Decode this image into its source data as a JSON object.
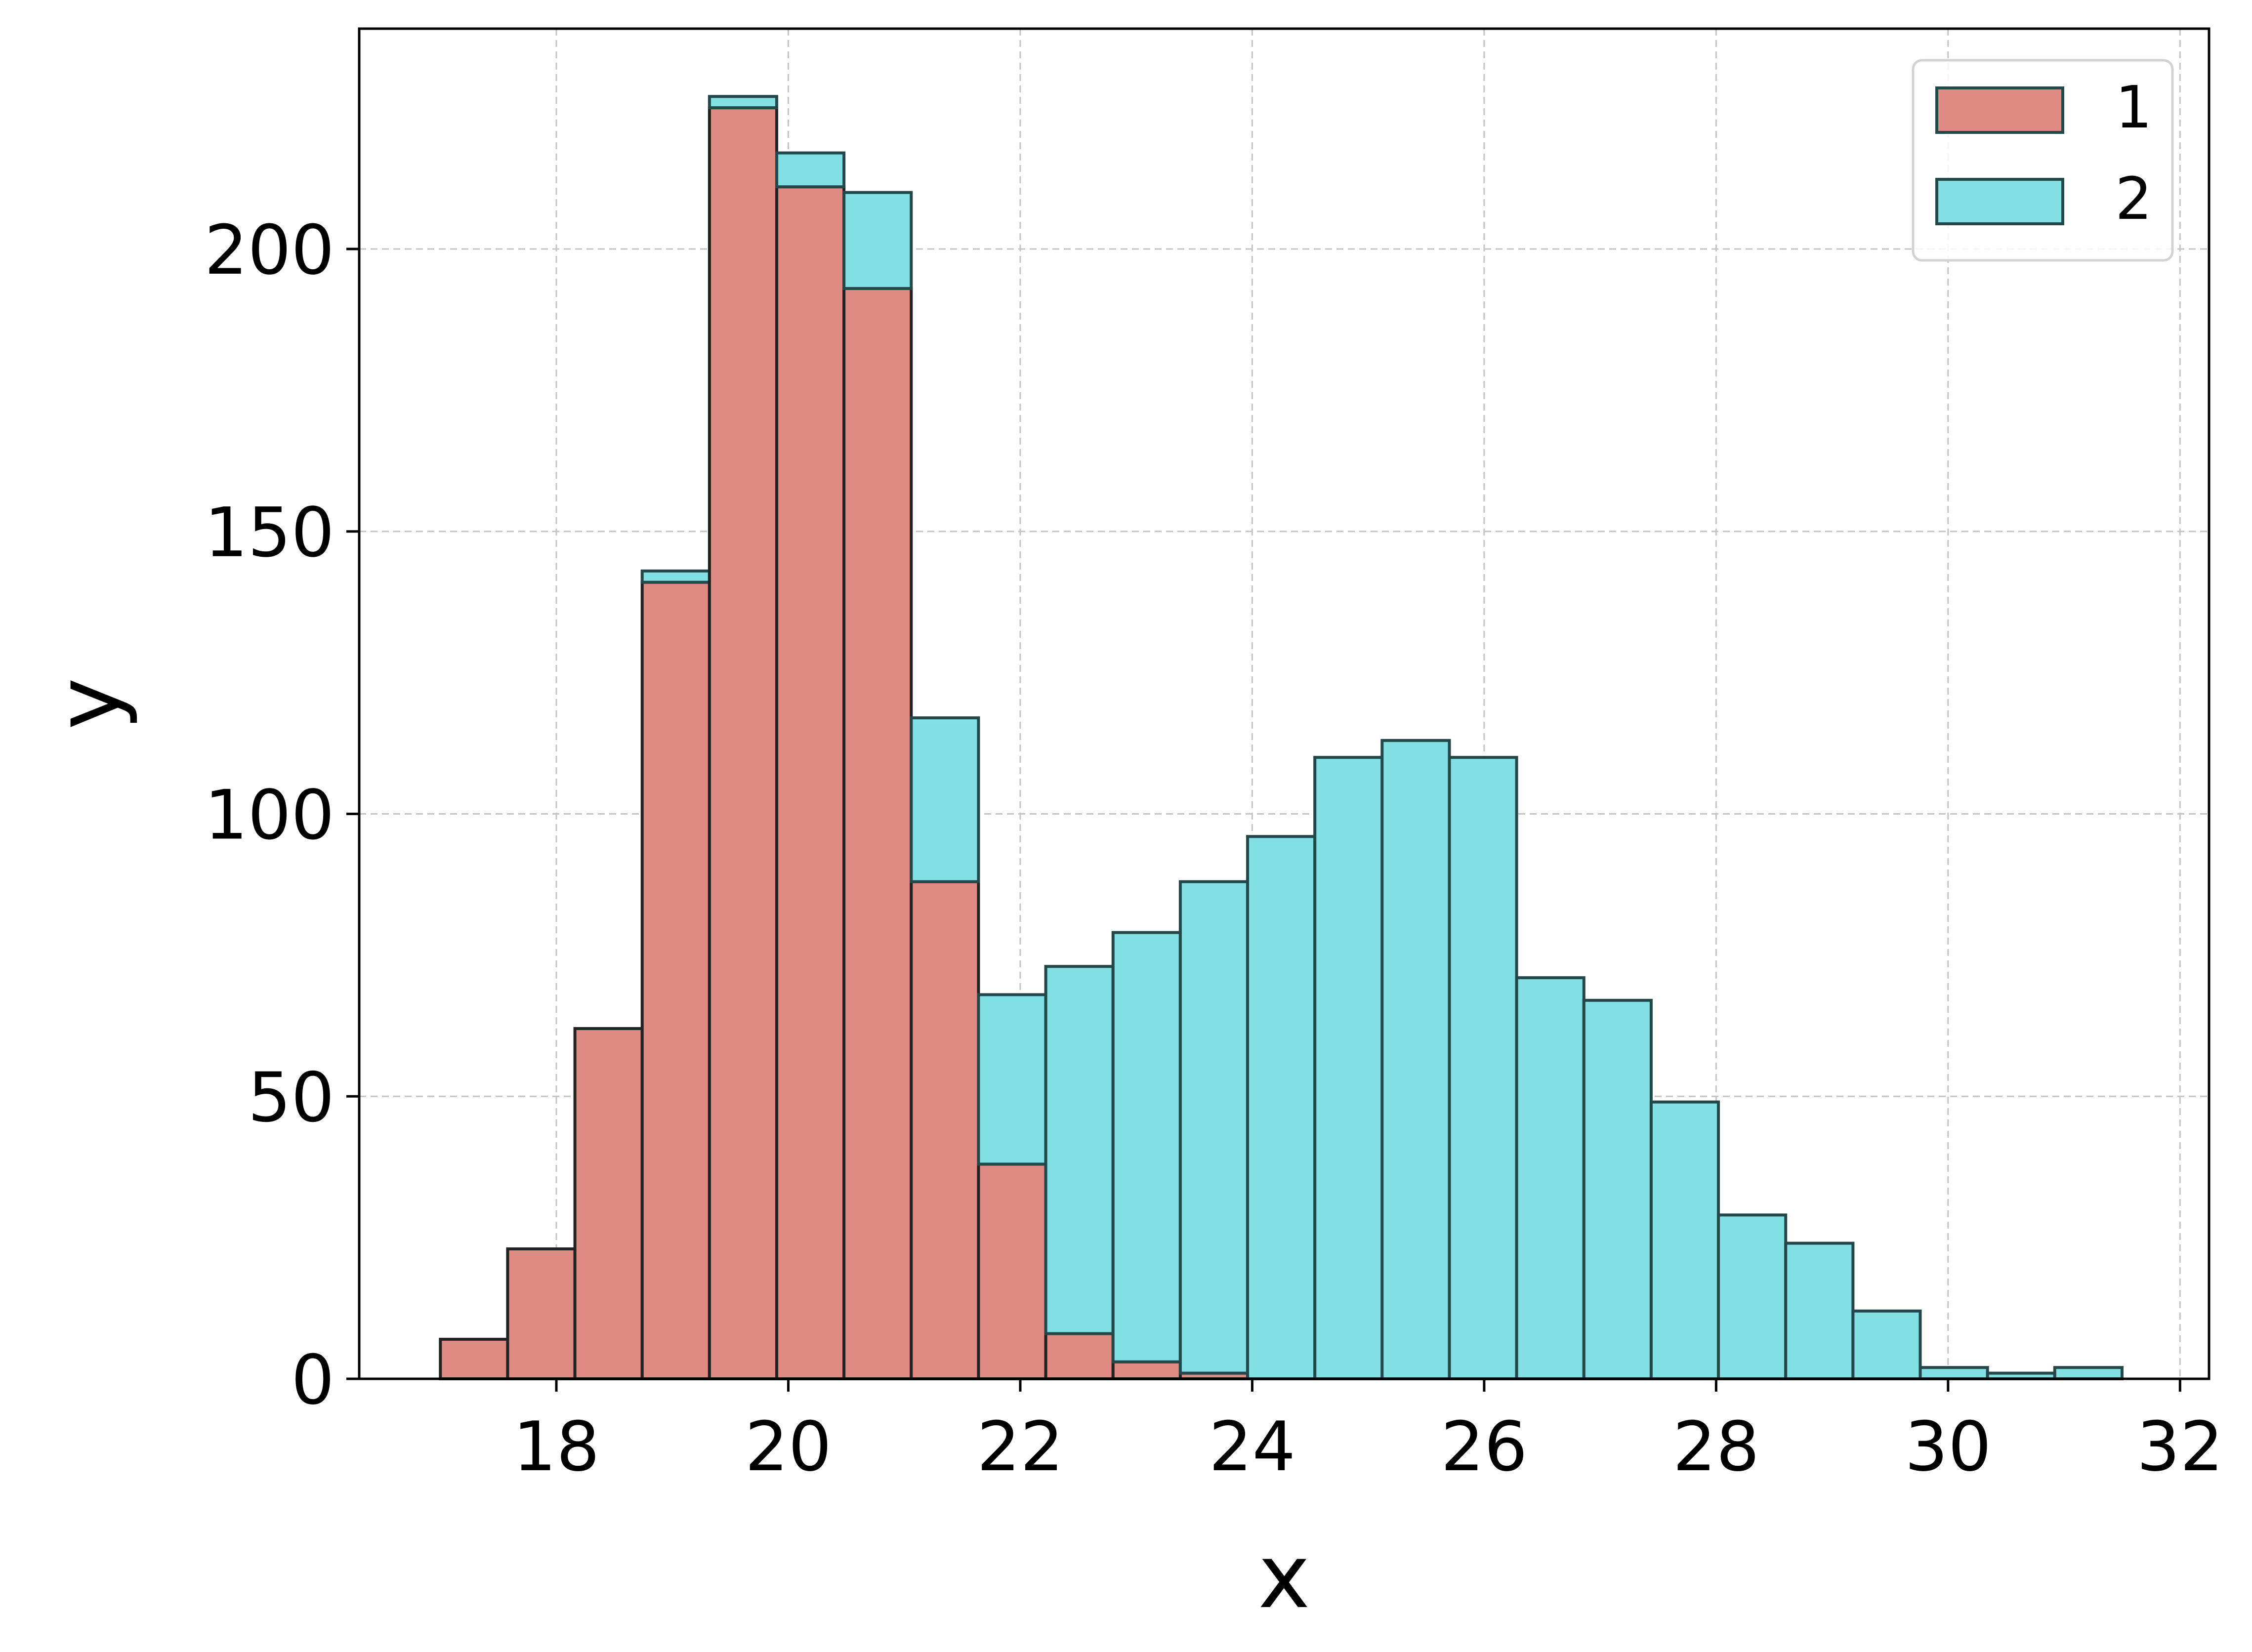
{
  "chart_data": {
    "type": "bar",
    "subtype": "stacked-histogram",
    "title": "",
    "xlabel": "x",
    "ylabel": "y",
    "xlim": [
      16.3,
      32.25
    ],
    "ylim": [
      0,
      239
    ],
    "xticks": [
      18,
      20,
      22,
      24,
      26,
      28,
      30,
      32
    ],
    "yticks": [
      0,
      50,
      100,
      150,
      200
    ],
    "grid": true,
    "legend_position": "top-right",
    "bin_edges": [
      17.0,
      17.58,
      18.16,
      18.74,
      19.32,
      19.9,
      20.48,
      21.06,
      21.64,
      22.22,
      22.8,
      23.38,
      23.96,
      24.54,
      25.12,
      25.7,
      26.28,
      26.86,
      27.44,
      28.02,
      28.6,
      29.18,
      29.76,
      30.34,
      30.92,
      31.5
    ],
    "series": [
      {
        "name": "1",
        "color": "#e08a84",
        "values": [
          7,
          23,
          62,
          141,
          225,
          211,
          193,
          88,
          38,
          8,
          3,
          1,
          0,
          0,
          0,
          0,
          0,
          0,
          0,
          0,
          0,
          0,
          0,
          0,
          0
        ]
      },
      {
        "name": "2",
        "color": "#82dfe4",
        "values": [
          0,
          0,
          0,
          2,
          2,
          6,
          17,
          29,
          30,
          65,
          76,
          87,
          96,
          110,
          113,
          110,
          71,
          67,
          49,
          29,
          24,
          12,
          2,
          1,
          2
        ]
      }
    ]
  }
}
